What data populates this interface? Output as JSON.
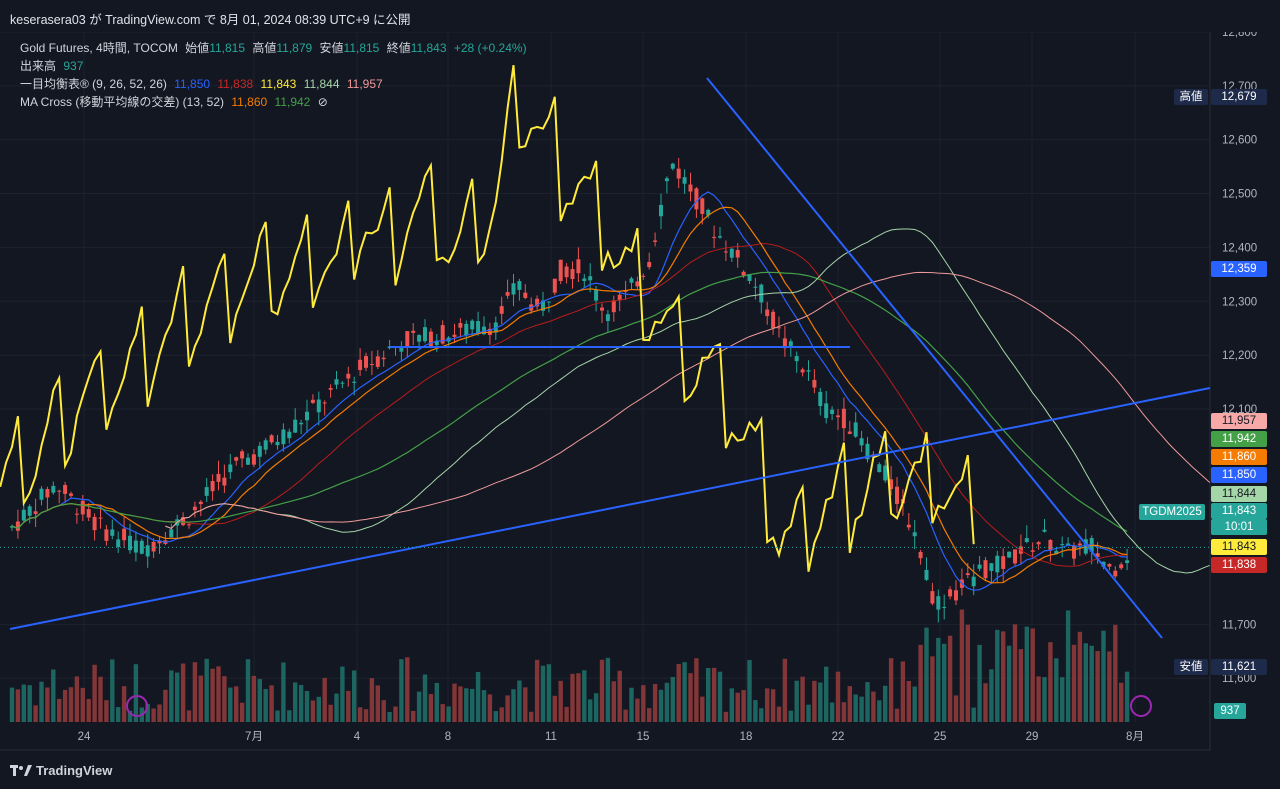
{
  "header": {
    "title": "keserasera03 が TradingView.com で 8月 01, 2024 08:39 UTC+9 に公開"
  },
  "legend": {
    "symbol": "Gold Futures, 4時間, TOCOM",
    "open_label": "始値",
    "open": "11,815",
    "high_label": "高値",
    "high": "11,879",
    "low_label": "安値",
    "low": "11,815",
    "close_label": "終値",
    "close": "11,843",
    "change": "+28 (+0.24%)",
    "volume_label": "出来高",
    "volume": "937",
    "ichimoku_label": "一目均衡表® (9, 26, 52, 26)",
    "ichimoku_values": [
      "11,850",
      "11,838",
      "11,843",
      "11,844",
      "11,957"
    ],
    "ma_label": "MA Cross (移動平均線の交差) (13, 52)",
    "ma_values": [
      "11,860",
      "11,942"
    ],
    "ma_hide_icon": "⊘"
  },
  "price_axis": {
    "ticks": [
      "12,800",
      "12,700",
      "12,600",
      "12,500",
      "12,400",
      "12,300",
      "12,200",
      "12,100",
      "11,700",
      "11,600"
    ],
    "tick_values": [
      12800,
      12700,
      12600,
      12500,
      12400,
      12300,
      12200,
      12100,
      11700,
      11600
    ],
    "high_tag": "高値",
    "high_value": "12,679",
    "high_price": 12679,
    "low_tag": "安値",
    "low_value": "11,621",
    "low_price": 11621,
    "marker_value": "12,359",
    "marker_price": 12359,
    "boxes": [
      {
        "value": "11,957",
        "price": 11957,
        "color": "#f7a9a7"
      },
      {
        "value": "11,942",
        "price": 11942,
        "color": "#43a047"
      },
      {
        "value": "11,860",
        "price": 11860,
        "color": "#f57c00"
      },
      {
        "value": "11,850",
        "price": 11850,
        "color": "#2962ff"
      },
      {
        "value": "11,844",
        "price": 11844,
        "color": "#a5d6a7"
      },
      {
        "value": "11,843",
        "price": 11843,
        "color": "#26a69a"
      },
      {
        "value": "11,843",
        "price": 11843,
        "color": "#ffeb3b"
      },
      {
        "value": "11,838",
        "price": 11838,
        "color": "#c62828"
      }
    ],
    "countdown": "10:01",
    "symbol_tag": "TGDM2025",
    "volume_tag": "937"
  },
  "time_axis": {
    "labels": [
      "24",
      "7月",
      "4",
      "8",
      "11",
      "15",
      "18",
      "22",
      "25",
      "29",
      "8月"
    ]
  },
  "footer": {
    "brand": "TradingView"
  },
  "colors": {
    "bg": "#131722",
    "grid": "#1e222d",
    "up": "#26a69a",
    "down": "#ef5350",
    "tenkan": "#2962ff",
    "kijun": "#b71c1c",
    "chikou": "#ffeb3b",
    "senkouA": "#a5d6a7",
    "senkouB": "#ef9a9a",
    "ma13": "#f57c00",
    "ma52": "#43a047",
    "trendline": "#2962ff"
  }
}
